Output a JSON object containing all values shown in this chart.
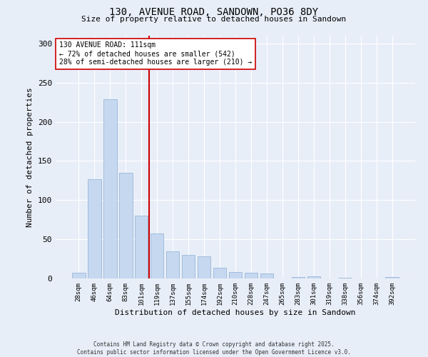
{
  "title": "130, AVENUE ROAD, SANDOWN, PO36 8DY",
  "subtitle": "Size of property relative to detached houses in Sandown",
  "xlabel": "Distribution of detached houses by size in Sandown",
  "ylabel": "Number of detached properties",
  "categories": [
    "28sqm",
    "46sqm",
    "64sqm",
    "83sqm",
    "101sqm",
    "119sqm",
    "137sqm",
    "155sqm",
    "174sqm",
    "192sqm",
    "210sqm",
    "228sqm",
    "247sqm",
    "265sqm",
    "283sqm",
    "301sqm",
    "319sqm",
    "338sqm",
    "356sqm",
    "374sqm",
    "392sqm"
  ],
  "values": [
    7,
    127,
    229,
    135,
    80,
    57,
    35,
    30,
    28,
    14,
    8,
    7,
    6,
    0,
    2,
    3,
    0,
    1,
    0,
    0,
    2
  ],
  "bar_color": "#c5d8f0",
  "bar_edge_color": "#9ab8d8",
  "vline_x_index": 4.5,
  "vline_color": "#cc0000",
  "annotation_text": "130 AVENUE ROAD: 111sqm\n← 72% of detached houses are smaller (542)\n28% of semi-detached houses are larger (210) →",
  "annotation_box_color": "#ffffff",
  "annotation_box_edge": "#cc0000",
  "ylim": [
    0,
    310
  ],
  "yticks": [
    0,
    50,
    100,
    150,
    200,
    250,
    300
  ],
  "bg_color": "#e8eef8",
  "grid_color": "#ffffff",
  "footer": "Contains HM Land Registry data © Crown copyright and database right 2025.\nContains public sector information licensed under the Open Government Licence v3.0."
}
